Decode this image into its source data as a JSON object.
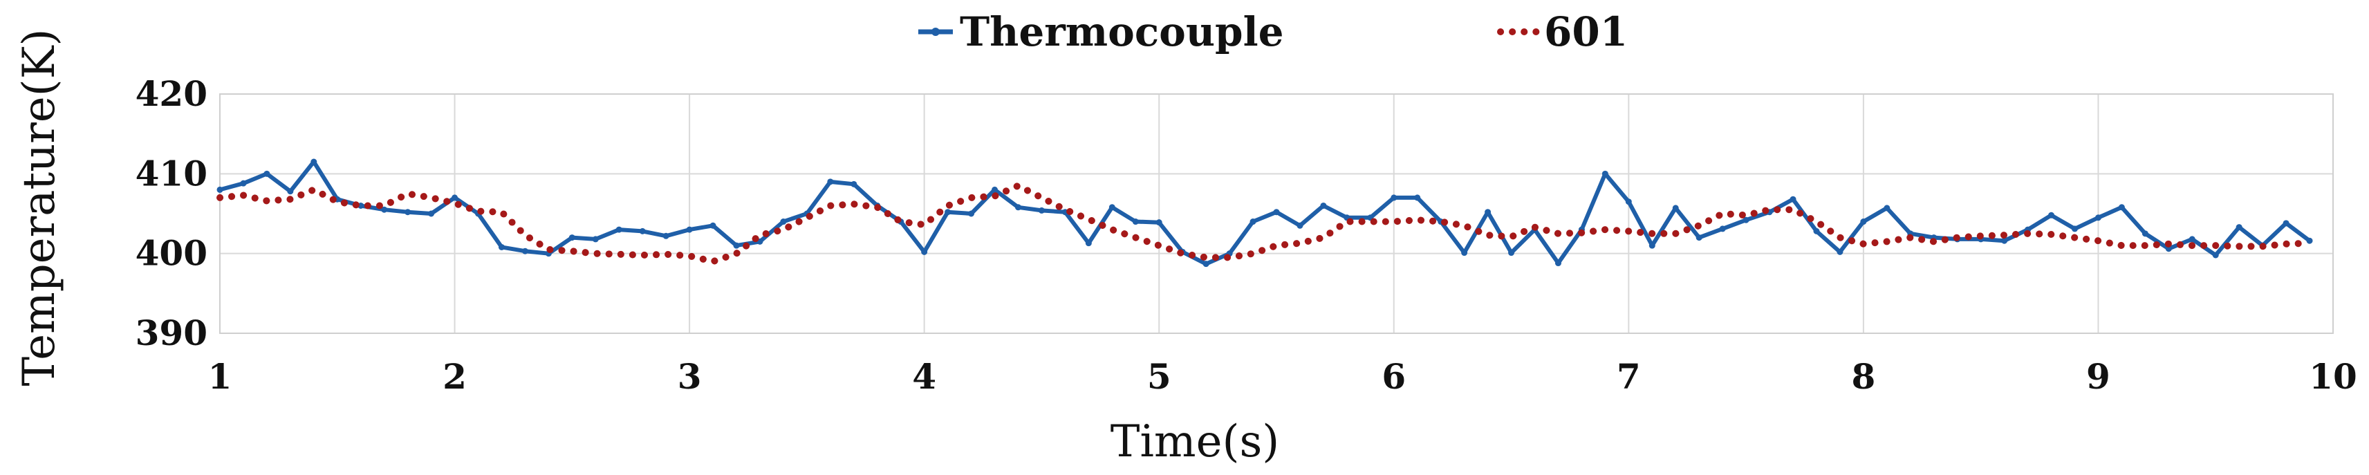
{
  "chart_data": {
    "type": "line",
    "title": "",
    "xlabel": "Time(s)",
    "ylabel": "Temperature(K)",
    "xlim": [
      1,
      10
    ],
    "ylim": [
      390,
      420
    ],
    "xticks": [
      "1",
      "2",
      "3",
      "4",
      "5",
      "6",
      "7",
      "8",
      "9",
      "10"
    ],
    "yticks": [
      "390",
      "400",
      "410",
      "420"
    ],
    "grid": true,
    "legend": "top-center",
    "series": [
      {
        "name": "Thermocouple",
        "color": "#1f5fa8",
        "style": "solid-marker",
        "x": [
          1.0,
          1.1,
          1.2,
          1.3,
          1.4,
          1.5,
          1.6,
          1.7,
          1.8,
          1.9,
          2.0,
          2.1,
          2.2,
          2.3,
          2.4,
          2.5,
          2.6,
          2.7,
          2.8,
          2.9,
          3.0,
          3.1,
          3.2,
          3.3,
          3.4,
          3.5,
          3.6,
          3.7,
          3.8,
          3.9,
          4.0,
          4.1,
          4.2,
          4.3,
          4.4,
          4.5,
          4.6,
          4.7,
          4.8,
          4.9,
          5.0,
          5.1,
          5.2,
          5.3,
          5.4,
          5.5,
          5.6,
          5.7,
          5.8,
          5.9,
          6.0,
          6.1,
          6.2,
          6.3,
          6.4,
          6.5,
          6.6,
          6.7,
          6.8,
          6.9,
          7.0,
          7.1,
          7.2,
          7.3,
          7.4,
          7.5,
          7.6,
          7.7,
          7.8,
          7.9,
          8.0,
          8.1,
          8.2,
          8.3,
          8.4,
          8.5,
          8.6,
          8.7,
          8.8,
          8.9,
          9.0,
          9.1,
          9.2,
          9.3,
          9.4,
          9.5,
          9.6,
          9.7,
          9.8,
          9.9
        ],
        "y": [
          408,
          408.8,
          410,
          407.8,
          411.5,
          406.8,
          406,
          405.5,
          405.2,
          405,
          407,
          405,
          400.8,
          400.3,
          400,
          402,
          401.8,
          403,
          402.8,
          402.2,
          403,
          403.5,
          401,
          401.5,
          404,
          405,
          409,
          408.7,
          406,
          404,
          400.2,
          405.2,
          405,
          408,
          405.8,
          405.4,
          405.2,
          401.3,
          405.8,
          404,
          403.9,
          400.2,
          398.7,
          400,
          404,
          405.2,
          403.5,
          406,
          404.5,
          404.5,
          407,
          407,
          404,
          400.1,
          405.2,
          400.1,
          403,
          398.8,
          403,
          410,
          406.5,
          401,
          405.7,
          402,
          403.1,
          404.2,
          405.2,
          406.8,
          402.8,
          400.2,
          404,
          405.7,
          402.5,
          402,
          401.8,
          401.8,
          401.6,
          403,
          404.8,
          403.1,
          404.5,
          405.8,
          402.5,
          400.6,
          401.8,
          399.8,
          403.3,
          401,
          403.8,
          401.6
        ]
      },
      {
        "name": "601",
        "color": "#a51919",
        "style": "dotted",
        "x": [
          1.0,
          1.1,
          1.2,
          1.3,
          1.4,
          1.5,
          1.6,
          1.7,
          1.8,
          1.9,
          2.0,
          2.1,
          2.2,
          2.3,
          2.4,
          2.5,
          2.6,
          2.7,
          2.8,
          2.9,
          3.0,
          3.1,
          3.2,
          3.3,
          3.4,
          3.5,
          3.6,
          3.7,
          3.8,
          3.9,
          4.0,
          4.1,
          4.2,
          4.3,
          4.4,
          4.5,
          4.6,
          4.7,
          4.8,
          4.9,
          5.0,
          5.1,
          5.2,
          5.3,
          5.4,
          5.5,
          5.6,
          5.7,
          5.8,
          5.9,
          6.0,
          6.1,
          6.2,
          6.3,
          6.4,
          6.5,
          6.6,
          6.7,
          6.8,
          6.9,
          7.0,
          7.1,
          7.2,
          7.3,
          7.4,
          7.5,
          7.6,
          7.7,
          7.8,
          7.9,
          8.0,
          8.1,
          8.2,
          8.3,
          8.4,
          8.5,
          8.6,
          8.7,
          8.8,
          8.9,
          9.0,
          9.1,
          9.2,
          9.3,
          9.4,
          9.5,
          9.6,
          9.7,
          9.8,
          9.9
        ],
        "y": [
          407,
          407.3,
          406.6,
          406.8,
          408,
          406.5,
          406,
          406,
          407.5,
          407,
          406.3,
          405.3,
          405.2,
          402.3,
          400.5,
          400.3,
          400,
          399.9,
          399.8,
          399.9,
          399.7,
          399,
          400,
          402.3,
          403,
          404.5,
          406,
          406.2,
          405.8,
          404,
          403.6,
          406,
          407,
          407.2,
          408.5,
          407,
          405.5,
          404.3,
          403,
          402,
          401,
          400,
          399.5,
          399.5,
          400,
          401,
          401.3,
          402,
          404,
          404,
          404,
          404.2,
          404,
          403.5,
          402.3,
          402.1,
          403.3,
          402.5,
          402.6,
          403,
          402.8,
          402.5,
          402.5,
          403.5,
          405,
          404.8,
          405.5,
          405.5,
          404,
          402,
          401.2,
          401.5,
          402,
          401.5,
          402,
          402.2,
          402.3,
          402.5,
          402.4,
          402,
          401.6,
          401,
          401,
          401.2,
          401,
          401,
          400.9,
          400.9,
          401.2,
          401.3
        ]
      }
    ]
  }
}
